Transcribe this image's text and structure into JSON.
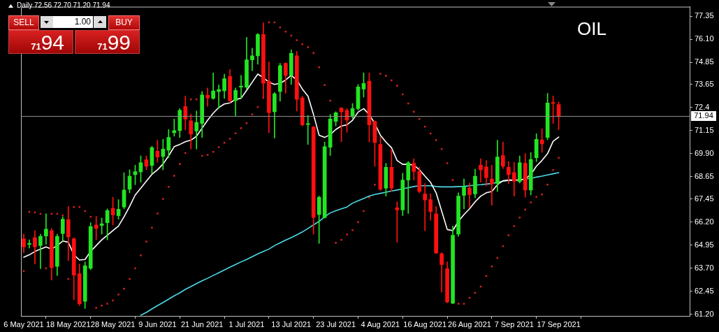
{
  "chart_data": {
    "type": "candlestick",
    "title": "OIL",
    "subtitle": "Daily 72.56 72.70 71.20 71.94",
    "annotations": [
      "SELL",
      "1.00",
      "BUY",
      "7194",
      "7199"
    ],
    "categories": [
      "6 May 2021",
      null,
      null,
      null,
      null,
      null,
      null,
      null,
      "18 May 2021",
      null,
      null,
      null,
      null,
      null,
      null,
      null,
      "28 May 2021",
      null,
      null,
      null,
      null,
      null,
      null,
      null,
      "9 Jun 2021",
      null,
      null,
      null,
      null,
      null,
      null,
      null,
      "21 Jun 2021",
      null,
      null,
      null,
      null,
      null,
      null,
      null,
      "1 Jul 2021",
      null,
      null,
      null,
      null,
      null,
      null,
      null,
      "13 Jul 2021",
      null,
      null,
      null,
      null,
      null,
      null,
      null,
      "23 Jul 2021",
      null,
      null,
      null,
      null,
      null,
      null,
      null,
      "4 Aug 2021",
      null,
      null,
      null,
      null,
      null,
      null,
      null,
      "16 Aug 2021",
      null,
      null,
      null,
      null,
      null,
      null,
      null,
      "26 Aug 2021",
      null,
      null,
      null,
      null,
      null,
      null,
      null,
      "7 Sep 2021",
      null,
      null,
      null,
      null,
      null,
      null,
      null,
      "17 Sep 2021"
    ],
    "ohlc": [
      [
        65.29,
        65.54,
        64.54,
        64.85
      ],
      [
        64.98,
        65.23,
        64.79,
        65.04
      ],
      [
        65.35,
        65.73,
        63.92,
        64.85
      ],
      [
        64.92,
        65.54,
        63.67,
        65.42
      ],
      [
        65.44,
        66.64,
        64.98,
        65.81
      ],
      [
        65.73,
        65.85,
        63.05,
        63.73
      ],
      [
        63.79,
        65.54,
        63.3,
        65.42
      ],
      [
        65.57,
        66.48,
        65.17,
        66.35
      ],
      [
        66.33,
        67.04,
        64.11,
        65.39
      ],
      [
        65.29,
        65.35,
        61.99,
        63.32
      ],
      [
        63.4,
        63.92,
        61.67,
        61.77
      ],
      [
        61.9,
        64.04,
        61.52,
        63.83
      ],
      [
        63.69,
        66.16,
        63.61,
        65.95
      ],
      [
        66.04,
        66.51,
        65.23,
        65.85
      ],
      [
        66.01,
        66.41,
        65.54,
        66.1
      ],
      [
        66.16,
        66.91,
        65.23,
        66.82
      ],
      [
        66.94,
        67.54,
        66.04,
        66.58
      ],
      [
        66.54,
        67.41,
        66.35,
        66.89
      ],
      [
        67.01,
        68.87,
        66.91,
        67.93
      ],
      [
        67.97,
        69.03,
        67.78,
        68.68
      ],
      [
        68.76,
        69.28,
        68.22,
        68.93
      ],
      [
        68.91,
        69.78,
        68.35,
        69.41
      ],
      [
        69.57,
        69.78,
        69.03,
        69.22
      ],
      [
        69.26,
        70.3,
        68.84,
        70.23
      ],
      [
        70.03,
        70.63,
        69.43,
        69.72
      ],
      [
        69.75,
        70.68,
        69.03,
        70.15
      ],
      [
        70.09,
        71.21,
        69.68,
        70.78
      ],
      [
        71.03,
        71.77,
        70.84,
        71.15
      ],
      [
        71.15,
        72.34,
        70.78,
        72.25
      ],
      [
        72.46,
        73.02,
        71.18,
        71.77
      ],
      [
        71.68,
        72.05,
        70.15,
        70.96
      ],
      [
        71.13,
        72.21,
        70.15,
        71.59
      ],
      [
        71.53,
        73.27,
        70.78,
        73.08
      ],
      [
        73.06,
        73.46,
        72.46,
        72.92
      ],
      [
        72.9,
        74.27,
        72.84,
        73.3
      ],
      [
        73.27,
        73.62,
        72.34,
        73.37
      ],
      [
        73.3,
        74.21,
        72.9,
        73.96
      ],
      [
        74.08,
        74.46,
        72.65,
        72.77
      ],
      [
        72.77,
        73.46,
        71.96,
        73.33
      ],
      [
        73.5,
        74.14,
        72.9,
        73.56
      ],
      [
        73.5,
        76.2,
        73.4,
        74.98
      ],
      [
        74.98,
        75.62,
        74.39,
        75.2
      ],
      [
        75.2,
        76.41,
        74.74,
        76.36
      ],
      [
        76.36,
        76.99,
        72.9,
        73.71
      ],
      [
        73.83,
        74.87,
        71.03,
        72.12
      ],
      [
        72.17,
        73.21,
        70.75,
        73.15
      ],
      [
        73.27,
        74.79,
        72.75,
        74.67
      ],
      [
        74.79,
        74.83,
        73.17,
        74.14
      ],
      [
        74.14,
        75.52,
        73.65,
        75.33
      ],
      [
        75.2,
        75.45,
        72.21,
        72.84
      ],
      [
        72.92,
        73.02,
        71.4,
        71.46
      ],
      [
        71.48,
        71.96,
        70.4,
        71.53
      ],
      [
        71.34,
        71.4,
        65.54,
        66.44
      ],
      [
        66.6,
        67.6,
        65.04,
        67.54
      ],
      [
        66.44,
        70.53,
        66.41,
        70.28
      ],
      [
        70.25,
        72.02,
        69.8,
        71.77
      ],
      [
        71.65,
        72.17,
        71.4,
        72.12
      ],
      [
        72.37,
        72.4,
        70.55,
        72.17
      ],
      [
        72.25,
        72.34,
        71.05,
        71.71
      ],
      [
        71.9,
        72.62,
        71.81,
        72.34
      ],
      [
        72.34,
        73.65,
        72.25,
        73.52
      ],
      [
        73.4,
        74.27,
        72.96,
        73.71
      ],
      [
        73.83,
        74.27,
        70.53,
        71.46
      ],
      [
        71.65,
        71.68,
        69.22,
        70.5
      ],
      [
        70.4,
        70.8,
        67.91,
        67.97
      ],
      [
        68.03,
        69.38,
        67.6,
        69.16
      ],
      [
        69.16,
        70.15,
        67.85,
        68.03
      ],
      [
        66.97,
        67.29,
        65.1,
        66.85
      ],
      [
        66.85,
        68.84,
        66.54,
        68.47
      ],
      [
        68.47,
        69.47,
        66.66,
        69.41
      ],
      [
        69.38,
        69.63,
        68.47,
        68.93
      ],
      [
        68.93,
        69.16,
        67.78,
        67.85
      ],
      [
        67.72,
        68.28,
        65.73,
        67.39
      ],
      [
        67.41,
        67.72,
        66.29,
        66.76
      ],
      [
        66.64,
        67.04,
        64.48,
        64.52
      ],
      [
        64.48,
        64.54,
        62.4,
        63.89
      ],
      [
        63.67,
        64.04,
        61.82,
        61.86
      ],
      [
        61.8,
        65.98,
        61.77,
        65.48
      ],
      [
        65.54,
        67.78,
        65.42,
        67.6
      ],
      [
        67.64,
        68.53,
        66.91,
        68.1
      ],
      [
        68.03,
        68.31,
        66.97,
        67.68
      ],
      [
        67.72,
        69.06,
        67.51,
        68.68
      ],
      [
        69.28,
        69.63,
        68.35,
        69.03
      ],
      [
        69.18,
        69.53,
        68.16,
        68.6
      ],
      [
        68.53,
        69.28,
        67.1,
        68.26
      ],
      [
        68.28,
        70.63,
        67.85,
        69.72
      ],
      [
        69.8,
        70.53,
        69.09,
        69.22
      ],
      [
        69.16,
        69.47,
        68.28,
        68.76
      ],
      [
        68.88,
        69.43,
        67.6,
        68.41
      ],
      [
        68.38,
        69.78,
        68.31,
        69.41
      ],
      [
        69.38,
        69.9,
        67.54,
        67.93
      ],
      [
        67.93,
        69.97,
        67.66,
        69.59
      ],
      [
        69.68,
        70.98,
        69.47,
        70.68
      ],
      [
        70.65,
        71.25,
        69.97,
        70.43
      ],
      [
        70.78,
        73.17,
        70.65,
        72.65
      ],
      [
        72.67,
        73.02,
        71.53,
        72.62
      ],
      [
        72.56,
        72.7,
        71.2,
        71.94
      ]
    ],
    "colors": [
      "#ff1010",
      "#22e622",
      "#ff1010",
      "#22e622",
      "#22e622",
      "#ff1010",
      "#22e622",
      "#22e622",
      "#ff1010",
      "#ff1010",
      "#ff1010",
      "#22e622",
      "#22e622",
      "#ff1010",
      "#22e622",
      "#22e622",
      "#ff1010",
      "#22e622",
      "#22e622",
      "#22e622",
      "#22e622",
      "#22e622",
      "#ff1010",
      "#22e622",
      "#ff1010",
      "#22e622",
      "#22e622",
      "#22e622",
      "#22e622",
      "#ff1010",
      "#ff1010",
      "#22e622",
      "#22e622",
      "#ff1010",
      "#22e622",
      "#22e622",
      "#22e622",
      "#ff1010",
      "#22e622",
      "#22e622",
      "#22e622",
      "#22e622",
      "#22e622",
      "#ff1010",
      "#ff1010",
      "#22e622",
      "#22e622",
      "#ff1010",
      "#22e622",
      "#ff1010",
      "#ff1010",
      "#22e622",
      "#ff1010",
      "#22e622",
      "#22e622",
      "#22e622",
      "#22e622",
      "#ff1010",
      "#ff1010",
      "#22e622",
      "#22e622",
      "#22e622",
      "#ff1010",
      "#ff1010",
      "#ff1010",
      "#22e622",
      "#ff1010",
      "#ff1010",
      "#22e622",
      "#22e622",
      "#ff1010",
      "#ff1010",
      "#ff1010",
      "#ff1010",
      "#ff1010",
      "#ff1010",
      "#ff1010",
      "#22e622",
      "#22e622",
      "#22e622",
      "#ff1010",
      "#22e622",
      "#ff1010",
      "#ff1010",
      "#ff1010",
      "#22e622",
      "#ff1010",
      "#ff1010",
      "#ff1010",
      "#22e622",
      "#ff1010",
      "#22e622",
      "#22e622",
      "#ff1010",
      "#22e622",
      "#ff1010",
      "#ff1010"
    ],
    "series": [
      {
        "type": "line",
        "color": "#ffffff",
        "values": [
          64.29,
          64.42,
          64.6,
          64.73,
          64.85,
          64.73,
          64.92,
          65.17,
          65.1,
          64.42,
          64.14,
          64.17,
          64.6,
          64.92,
          65.23,
          65.48,
          65.73,
          65.98,
          66.48,
          67.04,
          67.66,
          68.03,
          68.41,
          68.78,
          69.03,
          69.34,
          69.78,
          70.28,
          70.4,
          70.55,
          70.63,
          70.84,
          71.28,
          71.71,
          72.09,
          72.4,
          72.59,
          72.65,
          72.84,
          72.9,
          73.33,
          73.77,
          74.21,
          74.02,
          73.77,
          73.65,
          73.71,
          73.89,
          74.14,
          73.89,
          73.4,
          73.02,
          72.02,
          70.9,
          70.78,
          70.93,
          71.21,
          71.4,
          71.46,
          71.71,
          72.15,
          72.34,
          72.02,
          71.53,
          70.9,
          70.53,
          70.22,
          69.53,
          69.32,
          69.32,
          69.28,
          69.03,
          68.68,
          68.35,
          67.78,
          66.79,
          65.79,
          65.73,
          66.23,
          66.6,
          66.91,
          67.29,
          67.6,
          67.78,
          67.85,
          68.22,
          68.43,
          68.47,
          68.47,
          68.47,
          68.53,
          68.78,
          69.22,
          69.53,
          69.9,
          70.57,
          70.8
        ]
      },
      {
        "type": "line",
        "color": "#4dd9e6",
        "values": [
          null,
          null,
          null,
          null,
          null,
          null,
          null,
          null,
          null,
          null,
          null,
          null,
          null,
          null,
          null,
          null,
          null,
          null,
          null,
          null,
          null,
          61.15,
          61.3,
          61.49,
          61.67,
          61.84,
          62.02,
          62.2,
          62.36,
          62.55,
          62.7,
          62.86,
          63.01,
          63.15,
          63.3,
          63.45,
          63.6,
          63.75,
          63.89,
          64.04,
          64.17,
          64.32,
          64.47,
          64.6,
          64.73,
          64.92,
          65.07,
          65.22,
          65.35,
          65.5,
          65.66,
          65.85,
          66.04,
          66.23,
          66.48,
          66.69,
          66.81,
          66.91,
          67.01,
          67.22,
          67.35,
          67.47,
          67.6,
          67.69,
          67.75,
          67.81,
          67.88,
          67.93,
          67.99,
          68.06,
          68.12,
          68.16,
          68.16,
          68.16,
          68.12,
          68.1,
          68.1,
          68.1,
          68.12,
          68.13,
          68.16,
          68.2,
          68.22,
          68.25,
          68.28,
          68.35,
          68.41,
          68.45,
          68.47,
          null,
          68.53,
          68.56,
          68.63,
          68.68,
          68.75,
          68.81,
          68.87
        ]
      },
      {
        "type": "scatter",
        "color": "#d02020",
        "marker": "square",
        "values": [
          63.54,
          66.75,
          66.72,
          66.64,
          63.69,
          66.64,
          66.64,
          66.56,
          63.11,
          67.01,
          67.01,
          66.79,
          66.48,
          61.55,
          61.67,
          61.77,
          61.95,
          62.27,
          62.58,
          63.11,
          63.69,
          64.39,
          65.14,
          65.89,
          66.66,
          67.45,
          68.1,
          68.7,
          69.34,
          69.93,
          72.84,
          72.84,
          69.78,
          69.84,
          70.0,
          70.25,
          70.49,
          70.71,
          71.0,
          71.28,
          71.55,
          72.02,
          72.43,
          72.92,
          77.01,
          77.01,
          76.74,
          76.51,
          76.29,
          76.05,
          75.83,
          75.67,
          75.35,
          74.58,
          73.61,
          72.77,
          65.07,
          65.23,
          65.52,
          65.76,
          66.19,
          66.79,
          67.53,
          68.22,
          74.23,
          74.12,
          73.87,
          73.58,
          73.11,
          72.62,
          72.17,
          71.78,
          71.36,
          70.99,
          70.63,
          70.15,
          69.38,
          68.47,
          61.77,
          61.77,
          62.09,
          62.36,
          62.7,
          63.27,
          63.79,
          64.25,
          64.89,
          65.48,
          65.98,
          66.44,
          66.87,
          67.26,
          67.56,
          67.69,
          68.22,
          69.01,
          69.68
        ]
      }
    ],
    "ylim": [
      61.11,
      77.86
    ],
    "yticks": [
      77.35,
      {
        "value": 76.1,
        "label": "76.10"
      },
      74.85,
      73.65,
      72.4,
      71.15,
      {
        "value": 69.9,
        "label": "69.90"
      },
      68.65,
      67.45,
      {
        "value": 66.2,
        "label": "66.20"
      },
      64.95,
      {
        "value": 63.7,
        "label": "63.70"
      },
      62.45,
      {
        "value": 61.2,
        "label": "61.20"
      }
    ],
    "ref_lines": [
      {
        "axis": "y",
        "value": 71.94,
        "label": "71.94",
        "color": "#909090"
      }
    ],
    "grid": false,
    "legend": false
  }
}
